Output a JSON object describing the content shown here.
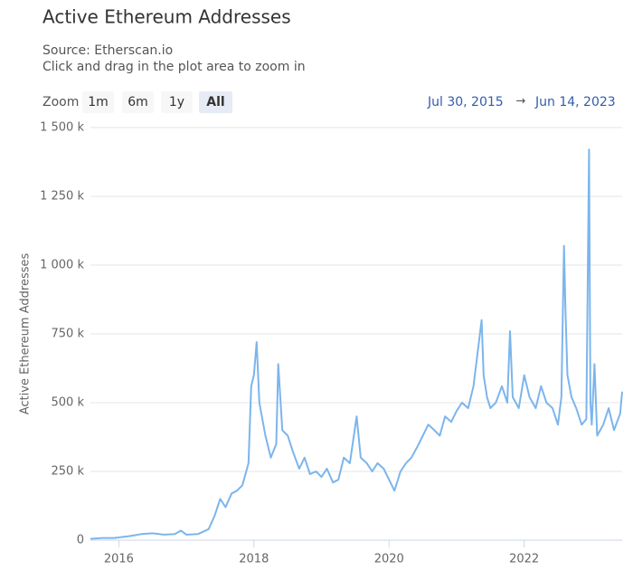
{
  "chart_data": {
    "type": "line",
    "title": "Active Ethereum Addresses",
    "subtitle": "Source: Etherscan.io",
    "caption": "Click and drag in the plot area to zoom in",
    "y_label": "Active Ethereum Addresses",
    "zoom_label": "Zoom",
    "zoom_buttons": [
      "1m",
      "6m",
      "1y",
      "All"
    ],
    "range_from": "Jul 30, 2015",
    "range_arrow": "→",
    "range_to": "Jun 14, 2023",
    "color": "#7cb5ec",
    "grid": true,
    "xlim": [
      2015.58,
      2023.45
    ],
    "xticks": [
      2016,
      2018,
      2020,
      2022
    ],
    "ylim": [
      0,
      1500000
    ],
    "yticks": [
      {
        "value": 0,
        "label": "0"
      },
      {
        "value": 250000,
        "label": "250 k"
      },
      {
        "value": 500000,
        "label": "500 k"
      },
      {
        "value": 750000,
        "label": "750 k"
      },
      {
        "value": 1000000,
        "label": "1 000 k"
      },
      {
        "value": 1250000,
        "label": "1 250 k"
      },
      {
        "value": 1500000,
        "label": "1 500 k"
      }
    ],
    "x": [
      2015.58,
      2015.75,
      2015.92,
      2016.0,
      2016.17,
      2016.33,
      2016.5,
      2016.67,
      2016.83,
      2016.92,
      2017.0,
      2017.17,
      2017.33,
      2017.42,
      2017.5,
      2017.58,
      2017.67,
      2017.75,
      2017.83,
      2017.92,
      2017.96,
      2018.0,
      2018.04,
      2018.08,
      2018.17,
      2018.25,
      2018.33,
      2018.36,
      2018.42,
      2018.5,
      2018.58,
      2018.67,
      2018.75,
      2018.83,
      2018.92,
      2019.0,
      2019.08,
      2019.17,
      2019.25,
      2019.33,
      2019.42,
      2019.52,
      2019.58,
      2019.67,
      2019.75,
      2019.83,
      2019.92,
      2020.0,
      2020.08,
      2020.17,
      2020.25,
      2020.33,
      2020.42,
      2020.5,
      2020.58,
      2020.67,
      2020.75,
      2020.83,
      2020.92,
      2021.0,
      2021.08,
      2021.17,
      2021.25,
      2021.37,
      2021.4,
      2021.45,
      2021.5,
      2021.58,
      2021.67,
      2021.75,
      2021.79,
      2021.83,
      2021.92,
      2022.0,
      2022.08,
      2022.17,
      2022.25,
      2022.33,
      2022.42,
      2022.5,
      2022.55,
      2022.59,
      2022.61,
      2022.64,
      2022.7,
      2022.77,
      2022.85,
      2022.92,
      2022.96,
      2022.98,
      2023.0,
      2023.04,
      2023.08,
      2023.17,
      2023.25,
      2023.33,
      2023.42,
      2023.45
    ],
    "values": [
      5000,
      8000,
      8000,
      10000,
      15000,
      22000,
      25000,
      20000,
      22000,
      35000,
      20000,
      22000,
      40000,
      90000,
      150000,
      120000,
      170000,
      180000,
      200000,
      280000,
      560000,
      600000,
      720000,
      500000,
      380000,
      300000,
      350000,
      640000,
      400000,
      380000,
      320000,
      260000,
      300000,
      240000,
      250000,
      230000,
      260000,
      210000,
      220000,
      300000,
      280000,
      450000,
      300000,
      280000,
      250000,
      280000,
      260000,
      220000,
      180000,
      250000,
      280000,
      300000,
      340000,
      380000,
      420000,
      400000,
      380000,
      450000,
      430000,
      470000,
      500000,
      480000,
      560000,
      800000,
      600000,
      520000,
      480000,
      500000,
      560000,
      500000,
      760000,
      520000,
      480000,
      600000,
      520000,
      480000,
      560000,
      500000,
      480000,
      420000,
      520000,
      1070000,
      850000,
      600000,
      520000,
      480000,
      420000,
      440000,
      1420000,
      500000,
      420000,
      640000,
      380000,
      420000,
      480000,
      400000,
      460000,
      540000
    ]
  }
}
